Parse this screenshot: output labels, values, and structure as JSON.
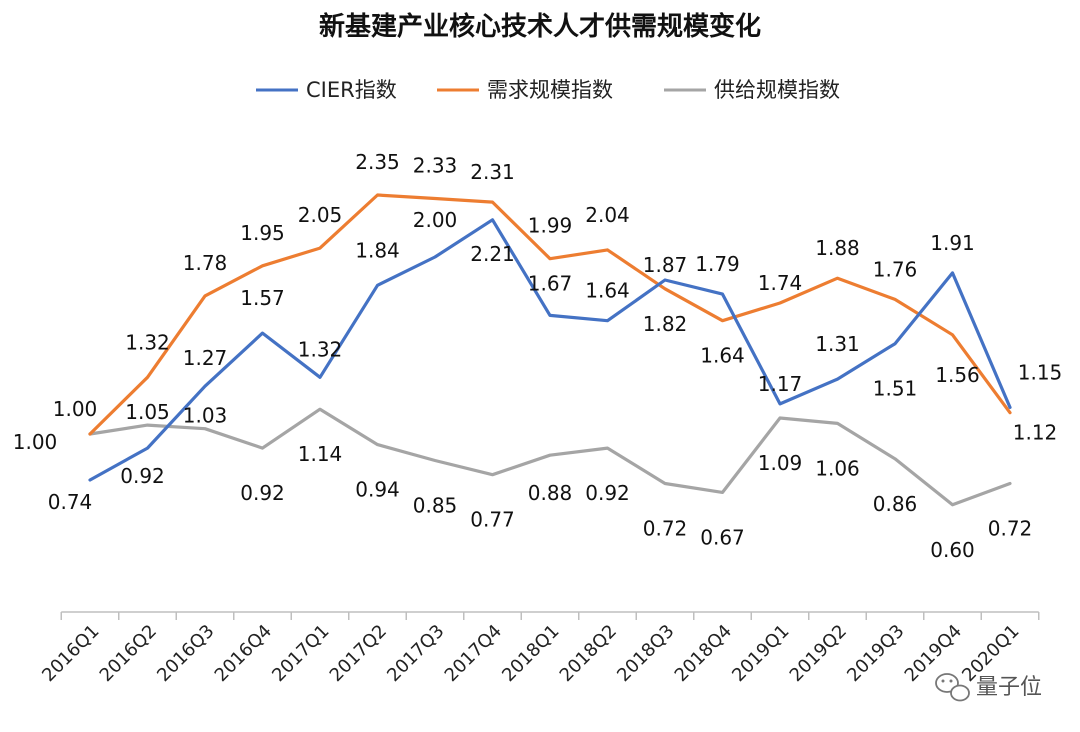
{
  "chart_data": {
    "type": "line",
    "title": "新基建产业核心技术人才供需规模变化",
    "categories": [
      "2016Q1",
      "2016Q2",
      "2016Q3",
      "2016Q4",
      "2017Q1",
      "2017Q2",
      "2017Q3",
      "2017Q4",
      "2018Q1",
      "2018Q2",
      "2018Q3",
      "2018Q4",
      "2019Q1",
      "2019Q2",
      "2019Q3",
      "2019Q4",
      "2020Q1"
    ],
    "series": [
      {
        "name": "CIER指数",
        "color": "#4472C4",
        "values": [
          0.74,
          0.92,
          1.27,
          1.57,
          1.32,
          1.84,
          2.0,
          2.21,
          1.67,
          1.64,
          1.87,
          1.79,
          1.17,
          1.31,
          1.51,
          1.91,
          1.15
        ]
      },
      {
        "name": "需求规模指数",
        "color": "#ED7D31",
        "values": [
          1.0,
          1.32,
          1.78,
          1.95,
          2.05,
          2.35,
          2.33,
          2.31,
          1.99,
          2.04,
          1.82,
          1.64,
          1.74,
          1.88,
          1.76,
          1.56,
          1.12
        ]
      },
      {
        "name": "供给规模指数",
        "color": "#A5A5A5",
        "values": [
          1.0,
          1.05,
          1.03,
          0.92,
          1.14,
          0.94,
          0.85,
          0.77,
          0.88,
          0.92,
          0.72,
          0.67,
          1.09,
          1.06,
          0.86,
          0.6,
          0.72
        ]
      }
    ],
    "xlabel": "",
    "ylabel": "",
    "ylim": [
      0,
      2.4
    ],
    "grid": false,
    "legend_position": "top"
  },
  "watermark": {
    "text": "量子位",
    "icon": "wechat-icon"
  }
}
